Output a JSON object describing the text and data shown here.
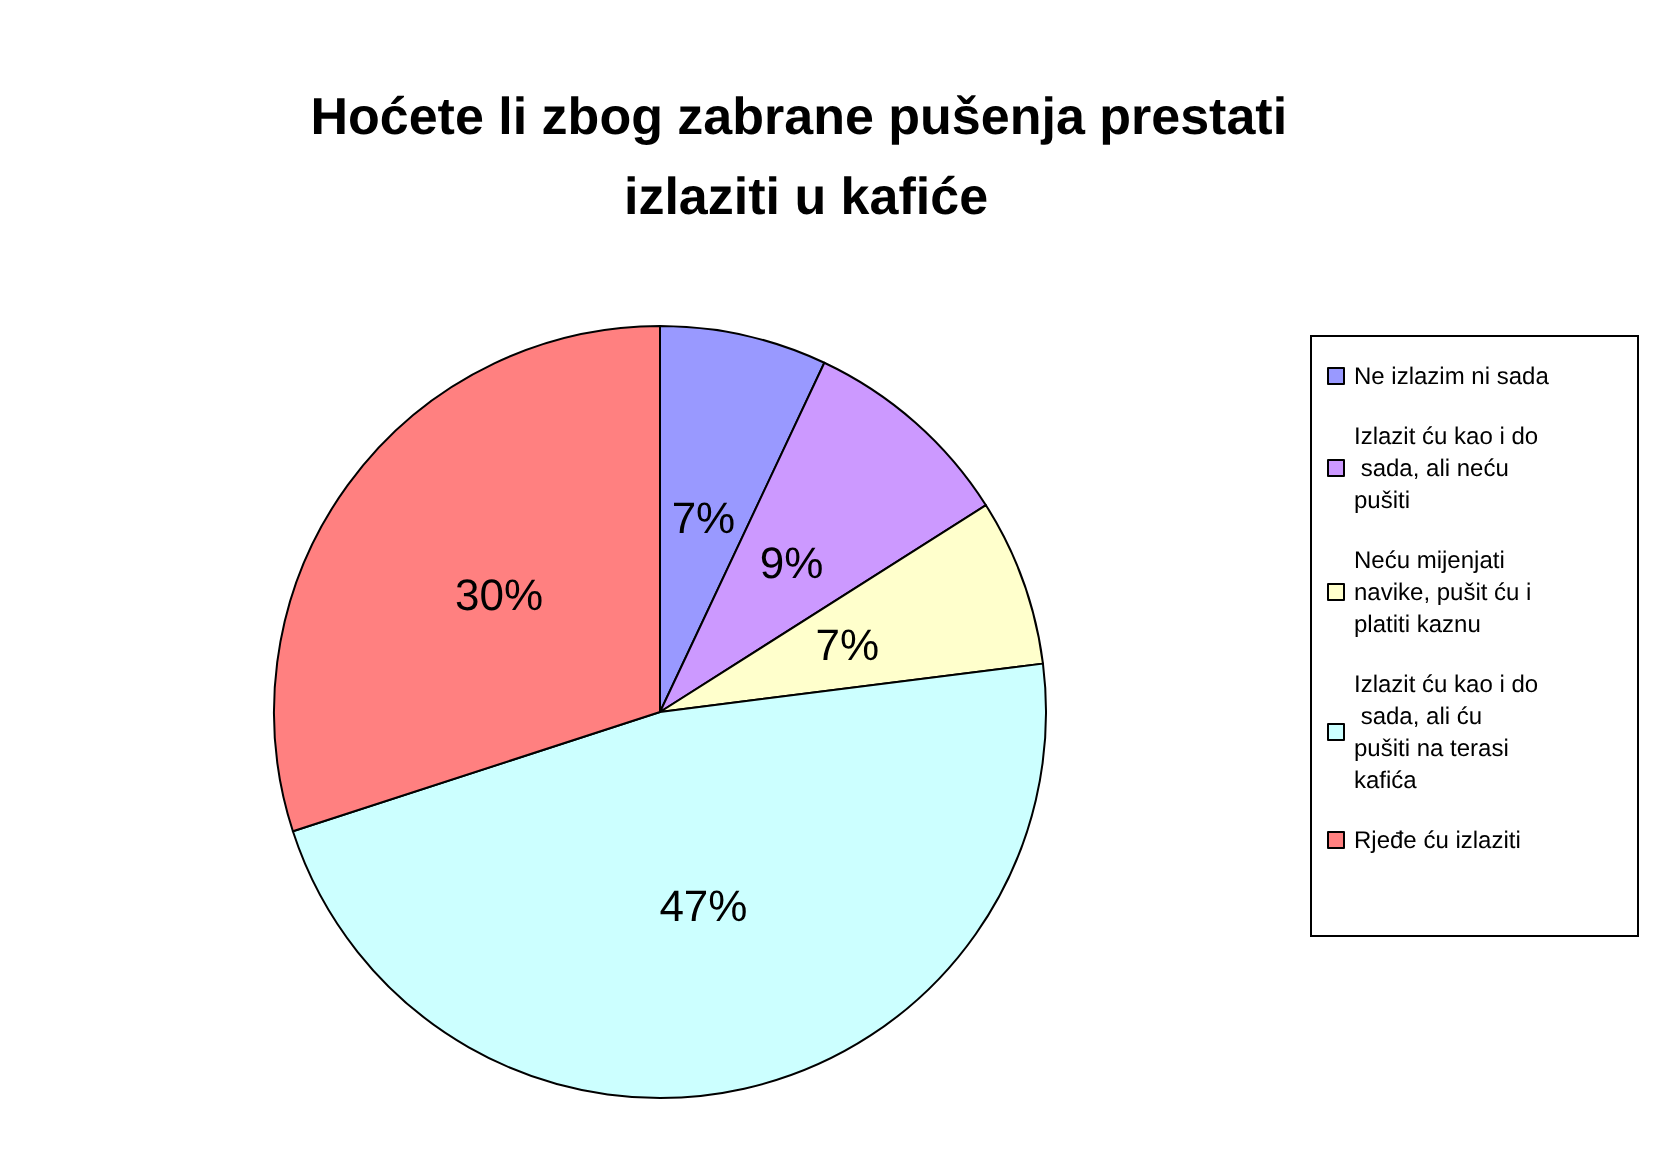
{
  "chart_data": {
    "type": "pie",
    "title": "Hoćete li zbog zabrane pušenja prestati izlaziti u kafiće",
    "categories": [
      "Ne izlazim ni sada",
      "Izlazit ću kao i do sada, ali neću pušiti",
      "Neću mijenjati navike, pušit ću i platiti kaznu",
      "Izlazit ću kao i do sada, ali ću pušiti na terasi kafića",
      "Rjeđe ću izlaziti"
    ],
    "values": [
      7,
      9,
      7,
      47,
      30
    ],
    "colors": [
      "#9999ff",
      "#cc99ff",
      "#ffffcc",
      "#ccffff",
      "#ff8080"
    ],
    "value_labels": [
      "7%",
      "9%",
      "7%",
      "47%",
      "30%"
    ],
    "legend": "right"
  }
}
